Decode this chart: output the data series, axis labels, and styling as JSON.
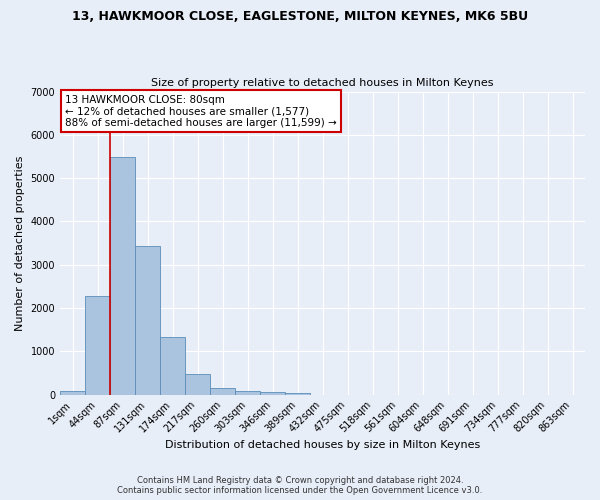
{
  "title": "13, HAWKMOOR CLOSE, EAGLESTONE, MILTON KEYNES, MK6 5BU",
  "subtitle": "Size of property relative to detached houses in Milton Keynes",
  "xlabel": "Distribution of detached houses by size in Milton Keynes",
  "ylabel": "Number of detached properties",
  "footer_line1": "Contains HM Land Registry data © Crown copyright and database right 2024.",
  "footer_line2": "Contains public sector information licensed under the Open Government Licence v3.0.",
  "bar_labels": [
    "1sqm",
    "44sqm",
    "87sqm",
    "131sqm",
    "174sqm",
    "217sqm",
    "260sqm",
    "303sqm",
    "346sqm",
    "389sqm",
    "432sqm",
    "475sqm",
    "518sqm",
    "561sqm",
    "604sqm",
    "648sqm",
    "691sqm",
    "734sqm",
    "777sqm",
    "820sqm",
    "863sqm"
  ],
  "bar_values": [
    80,
    2270,
    5480,
    3440,
    1320,
    470,
    160,
    90,
    55,
    40,
    0,
    0,
    0,
    0,
    0,
    0,
    0,
    0,
    0,
    0,
    0
  ],
  "bar_color": "#aac4e0",
  "bar_edge_color": "#5b8db8",
  "background_color": "#e8eef8",
  "grid_color": "#ffffff",
  "ylim": [
    0,
    7000
  ],
  "yticks": [
    0,
    1000,
    2000,
    3000,
    4000,
    5000,
    6000,
    7000
  ],
  "annotation_text_line1": "13 HAWKMOOR CLOSE: 80sqm",
  "annotation_text_line2": "← 12% of detached houses are smaller (1,577)",
  "annotation_text_line3": "88% of semi-detached houses are larger (11,599) →",
  "annotation_box_color": "#ffffff",
  "annotation_border_color": "#cc0000",
  "vline_color": "#cc0000",
  "vline_x": 1.5,
  "title_fontsize": 9,
  "subtitle_fontsize": 8,
  "xlabel_fontsize": 8,
  "ylabel_fontsize": 8,
  "tick_fontsize": 7,
  "annotation_fontsize": 7.5,
  "footer_fontsize": 6
}
